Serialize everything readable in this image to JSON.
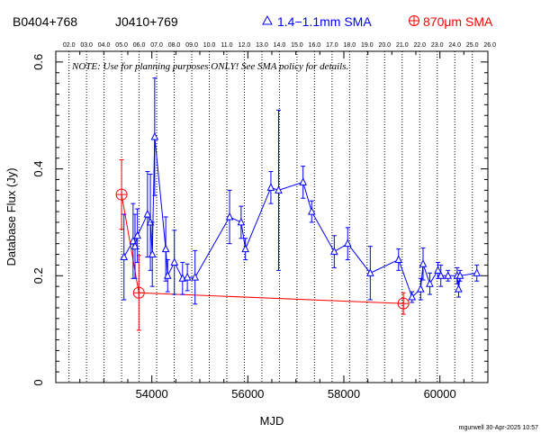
{
  "header": {
    "source_name": "B0404+768",
    "alt_name": "J0410+769",
    "legend_blue_label": "1.4−1.1mm SMA",
    "legend_red_label": "870μm SMA"
  },
  "note": "NOTE: Use for planning purposes ONLY!  See SMA policy for details.",
  "footer": "mgurwell 30-Apr-2025 10:57",
  "colors": {
    "blue": "#0000ff",
    "red": "#ff0000",
    "axis": "#000000"
  },
  "chart_data": {
    "type": "scatter",
    "xlabel": "MJD",
    "ylabel": "Database Flux (Jy)",
    "xlim": [
      52000,
      61000
    ],
    "ylim": [
      0,
      0.62
    ],
    "x_ticks": [
      54000,
      56000,
      58000,
      60000
    ],
    "y_ticks": [
      0,
      0.2,
      0.4,
      0.6
    ],
    "y_tick_labels": [
      "0",
      "0.2",
      "0.4",
      "0.6"
    ],
    "top_axis_labels": [
      "02.0",
      "03.0",
      "04.0",
      "05.0",
      "06.0",
      "07.0",
      "08.0",
      "09.0",
      "10.0",
      "11.0",
      "12.0",
      "13.0",
      "14.0",
      "15.0",
      "16.0",
      "17.0",
      "18.0",
      "19.0",
      "20.0",
      "21.0",
      "22.0",
      "23.0",
      "24.0",
      "25.0",
      "26.0"
    ],
    "top_axis_mjd": [
      52275,
      52640,
      53005,
      53371,
      53736,
      54101,
      54466,
      54832,
      55197,
      55562,
      55927,
      56293,
      56658,
      57023,
      57388,
      57754,
      58119,
      58484,
      58849,
      59215,
      59580,
      59945,
      60310,
      60676,
      61041
    ],
    "grid": "vertical dotted lines at top-axis years",
    "series": [
      {
        "name": "1.4−1.1mm SMA",
        "color": "#0000ff",
        "marker": "triangle",
        "connected": true,
        "points": [
          {
            "x": 53420,
            "y": 0.235,
            "err": 0.08
          },
          {
            "x": 53610,
            "y": 0.265,
            "err": 0.07
          },
          {
            "x": 53650,
            "y": 0.255,
            "err": 0.06
          },
          {
            "x": 53700,
            "y": 0.275,
            "err": 0.05
          },
          {
            "x": 53910,
            "y": 0.315,
            "err": 0.08
          },
          {
            "x": 53970,
            "y": 0.3,
            "err": 0.09
          },
          {
            "x": 54010,
            "y": 0.24,
            "err": 0.06
          },
          {
            "x": 54060,
            "y": 0.46,
            "err": 0.11
          },
          {
            "x": 54290,
            "y": 0.25,
            "err": 0.06
          },
          {
            "x": 54330,
            "y": 0.2,
            "err": 0.03
          },
          {
            "x": 54470,
            "y": 0.225,
            "err": 0.06
          },
          {
            "x": 54640,
            "y": 0.195,
            "err": 0.03
          },
          {
            "x": 54740,
            "y": 0.197,
            "err": 0.025
          },
          {
            "x": 54900,
            "y": 0.197,
            "err": 0.05
          },
          {
            "x": 55620,
            "y": 0.31,
            "err": 0.05
          },
          {
            "x": 55860,
            "y": 0.3,
            "err": 0.03
          },
          {
            "x": 55950,
            "y": 0.25,
            "err": 0.02
          },
          {
            "x": 56480,
            "y": 0.365,
            "err": 0.03
          },
          {
            "x": 56640,
            "y": 0.36,
            "err": 0.15
          },
          {
            "x": 57150,
            "y": 0.375,
            "err": 0.03
          },
          {
            "x": 57330,
            "y": 0.32,
            "err": 0.02
          },
          {
            "x": 57800,
            "y": 0.245,
            "err": 0.03
          },
          {
            "x": 58080,
            "y": 0.26,
            "err": 0.03
          },
          {
            "x": 58550,
            "y": 0.205,
            "err": 0.05
          },
          {
            "x": 59140,
            "y": 0.23,
            "err": 0.02
          },
          {
            "x": 59420,
            "y": 0.16,
            "err": 0.01
          },
          {
            "x": 59600,
            "y": 0.175,
            "err": 0.02
          },
          {
            "x": 59650,
            "y": 0.222,
            "err": 0.03
          },
          {
            "x": 59790,
            "y": 0.185,
            "err": 0.02
          },
          {
            "x": 59960,
            "y": 0.21,
            "err": 0.015
          },
          {
            "x": 60020,
            "y": 0.2,
            "err": 0.02
          },
          {
            "x": 60170,
            "y": 0.2,
            "err": 0.01
          },
          {
            "x": 60360,
            "y": 0.2,
            "err": 0.015
          },
          {
            "x": 60390,
            "y": 0.175,
            "err": 0.015
          },
          {
            "x": 60420,
            "y": 0.2,
            "err": 0.01
          },
          {
            "x": 60770,
            "y": 0.205,
            "err": 0.015
          }
        ]
      },
      {
        "name": "870μm SMA",
        "color": "#ff0000",
        "marker": "circle-plus",
        "connected": true,
        "points": [
          {
            "x": 53370,
            "y": 0.352,
            "err": 0.065
          },
          {
            "x": 53730,
            "y": 0.168,
            "err": 0.07
          },
          {
            "x": 59240,
            "y": 0.148,
            "err": 0.02
          }
        ]
      }
    ]
  }
}
